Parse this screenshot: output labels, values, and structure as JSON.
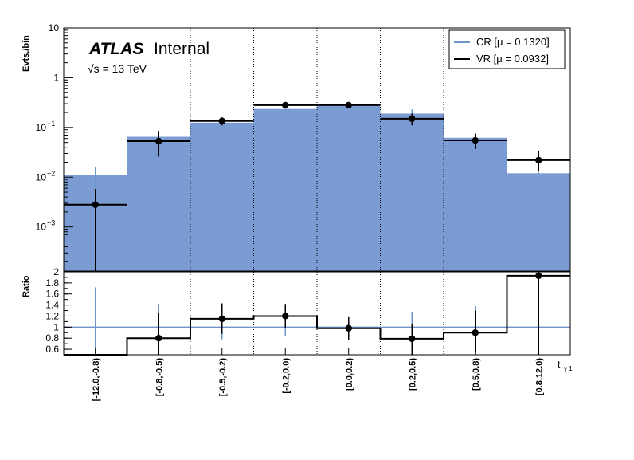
{
  "chart_data": {
    "type": "bar",
    "experiment_label": "ATLAS",
    "experiment_status": "Internal",
    "energy_label": "√s = 13 TeV",
    "xlabel": "t",
    "xlabel_sub": "γ 1",
    "ylabel_top": "Evts./bin",
    "ylabel_bottom": "Ratio",
    "categories": [
      "[-12.0,-0.8)",
      "[-0.8,-0.5)",
      "[-0.5,-0.2)",
      "[-0.2,0.0)",
      "[0.0,0.2)",
      "[0.2,0.5)",
      "[0.5,0.8)",
      "[0.8,12.0)"
    ],
    "top_panel": {
      "yscale": "log",
      "ylim": [
        0.00013,
        10
      ],
      "yticks": [
        {
          "value": 10,
          "label": "10"
        },
        {
          "value": 1,
          "label": "1"
        },
        {
          "value": 0.1,
          "label": "10",
          "exp": "−1"
        },
        {
          "value": 0.01,
          "label": "10",
          "exp": "−2"
        },
        {
          "value": 0.001,
          "label": "10",
          "exp": "−3"
        }
      ],
      "series": [
        {
          "name": "CR [μ = 0.1320]",
          "style": "filled-histogram",
          "color": "#7b9bd3",
          "line_color": "#6f96c8",
          "values": [
            0.011,
            0.065,
            0.125,
            0.235,
            0.27,
            0.19,
            0.062,
            0.012
          ],
          "err_high": [
            0.016,
            0.075,
            0.135,
            0.24,
            0.275,
            0.23,
            0.07,
            0.0125
          ],
          "err_low": [
            0.006,
            0.055,
            0.115,
            0.23,
            0.265,
            0.15,
            0.054,
            0.0115
          ]
        },
        {
          "name": "VR [μ = 0.0932]",
          "style": "points",
          "color": "#000000",
          "values": [
            0.0028,
            0.053,
            0.135,
            0.28,
            0.28,
            0.15,
            0.055,
            0.022
          ],
          "err_high": [
            0.0058,
            0.085,
            0.16,
            0.3,
            0.3,
            0.19,
            0.075,
            0.034
          ],
          "err_low": [
            0.00013,
            0.026,
            0.11,
            0.26,
            0.26,
            0.11,
            0.037,
            0.013
          ]
        }
      ]
    },
    "bottom_panel": {
      "yscale": "linear",
      "ylim": [
        0.5,
        2.0
      ],
      "yticks": [
        0.6,
        0.8,
        1,
        1.2,
        1.4,
        1.6,
        1.8,
        2
      ],
      "reference_line": 1,
      "cr_error_bars": {
        "color": "#6f96c8",
        "high": [
          1.72,
          1.42,
          1.2,
          1.25,
          1.18,
          1.28,
          1.38,
          null
        ],
        "low": [
          0.5,
          0.58,
          0.78,
          0.84,
          0.82,
          0.72,
          0.62,
          null
        ]
      },
      "vr_ratio": {
        "color": "#000000",
        "values": [
          0.5,
          0.8,
          1.15,
          1.2,
          0.98,
          0.79,
          0.9,
          1.93
        ],
        "points": [
          null,
          0.8,
          1.15,
          1.2,
          0.98,
          0.79,
          0.9,
          1.93
        ],
        "err_high": [
          null,
          1.25,
          1.43,
          1.42,
          1.18,
          1.05,
          1.3,
          2.0
        ],
        "err_low": [
          null,
          0.5,
          0.88,
          0.98,
          0.76,
          0.5,
          0.55,
          0.5
        ]
      }
    },
    "legend": {
      "placement": "top-right",
      "entries": [
        {
          "label": "CR [μ = 0.1320]",
          "color": "#6f96c8"
        },
        {
          "label": "VR [μ = 0.0932]",
          "color": "#000000"
        }
      ]
    },
    "grid": {
      "vertical_dotted": true
    }
  }
}
